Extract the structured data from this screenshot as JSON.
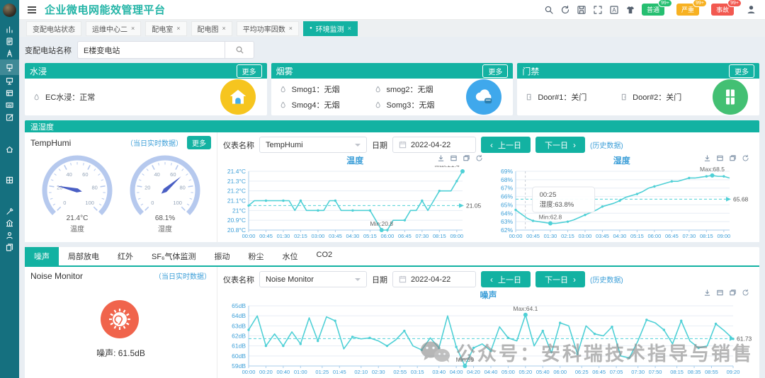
{
  "app": {
    "title": "企业微电网能效管理平台"
  },
  "header": {
    "action_icons": [
      "search",
      "refresh",
      "save",
      "fullscreen",
      "translate",
      "theme"
    ],
    "badges": [
      {
        "label": "普通",
        "count": "99+",
        "color": "#26bf71"
      },
      {
        "label": "严重",
        "count": "99+",
        "color": "#f7b122"
      },
      {
        "label": "事故",
        "count": "99+",
        "color": "#f25950"
      }
    ],
    "user_icon": "user"
  },
  "sidebar": {
    "icons": [
      "stats",
      "report",
      "substation",
      "environment",
      "inspection",
      "panel",
      "keyboard",
      "edit",
      "home",
      "grid",
      "tools",
      "enterprise",
      "user",
      "documents"
    ],
    "active_index": 3
  },
  "tabs": [
    {
      "label": "变配电站状态",
      "closable": false,
      "active": false
    },
    {
      "label": "运维中心二",
      "closable": true,
      "active": false
    },
    {
      "label": "配电室",
      "closable": true,
      "active": false
    },
    {
      "label": "配电图",
      "closable": true,
      "active": false
    },
    {
      "label": "平均功率因数",
      "closable": true,
      "active": false
    },
    {
      "label": "环境监测",
      "closable": true,
      "active": true
    }
  ],
  "search": {
    "label": "变配电站名称",
    "value": "E楼变电站"
  },
  "panels": {
    "water": {
      "title": "水浸",
      "more": "更多",
      "icon_color": "#f6c51f",
      "items": [
        {
          "name": "EC水浸",
          "value": "正常"
        }
      ]
    },
    "smoke": {
      "title": "烟雾",
      "more": "更多",
      "icon_color": "#3fa8ec",
      "items": [
        {
          "name": "Smog1",
          "value": "无烟"
        },
        {
          "name": "smog2",
          "value": "无烟"
        },
        {
          "name": "Smog4",
          "value": "无烟"
        },
        {
          "name": "Somg3",
          "value": "无烟"
        }
      ]
    },
    "door": {
      "title": "门禁",
      "more": "更多",
      "icon_color": "#43c073",
      "items": [
        {
          "name": "Door#1",
          "value": "关门"
        },
        {
          "name": "Door#2",
          "value": "关门"
        }
      ]
    }
  },
  "temphumi": {
    "section_title": "温湿度",
    "device": "TempHumi",
    "realtime_label": "（当日实时数据）",
    "more": "更多",
    "gauges": [
      {
        "value": 21.4,
        "display": "21.4°C",
        "label": "温度",
        "min": 0,
        "max": 100,
        "ticks": [
          0,
          20,
          40,
          60,
          80,
          100
        ]
      },
      {
        "value": 68.1,
        "display": "68.1%",
        "label": "湿度",
        "min": 0,
        "max": 100,
        "ticks": [
          0,
          20,
          40,
          60,
          80,
          100
        ]
      }
    ],
    "controls": {
      "meter_label": "仪表名称",
      "meter_value": "TempHumi",
      "date_label": "日期",
      "date_value": "2022-04-22",
      "prev": "上一日",
      "next": "下一日",
      "history": "(历史数据)"
    }
  },
  "noise": {
    "tabs": [
      "噪声",
      "局部放电",
      "红外",
      "SF₆气体监测",
      "振动",
      "粉尘",
      "水位",
      "CO2"
    ],
    "active_tab": 0,
    "device": "Noise Monitor",
    "realtime_label": "（当日实时数据）",
    "value_text": "噪声:  61.5dB",
    "icon_color": "#f0644c",
    "controls": {
      "meter_label": "仪表名称",
      "meter_value": "Noise Monitor",
      "date_label": "日期",
      "date_value": "2022-04-22",
      "prev": "上一日",
      "next": "下一日",
      "history": "(历史数据)"
    }
  },
  "toolbox_icons": [
    "download",
    "dataview",
    "restore",
    "refresh"
  ],
  "watermark": {
    "text": "公众号：安科瑞技术指导与销售"
  },
  "chart_data": [
    {
      "id": "temp",
      "type": "line",
      "title": "温度",
      "unit": "°C",
      "ylim": [
        20.8,
        21.4
      ],
      "ystep": 0.1,
      "step_min": 15,
      "line_color": "#4fd0d6",
      "x_ticks": [
        "00:00",
        "00:45",
        "01:30",
        "02:15",
        "03:00",
        "03:45",
        "04:30",
        "05:15",
        "06:00",
        "06:45",
        "07:30",
        "08:15",
        "09:00"
      ],
      "values": [
        21.05,
        21.1,
        21.1,
        21.1,
        21.1,
        21.1,
        21.1,
        21.1,
        21.0,
        21.1,
        21.0,
        21.0,
        21.0,
        21.0,
        21.1,
        21.1,
        21.0,
        21.0,
        21.0,
        21.0,
        21.0,
        21.0,
        20.9,
        20.8,
        20.8,
        20.9,
        20.9,
        20.9,
        21.0,
        21.0,
        21.1,
        21.0,
        21.1,
        21.2,
        21.2,
        21.2,
        21.3,
        21.4
      ],
      "avg": 21.05,
      "avg_label": "21.05",
      "max_label": "Max:21.4",
      "max_index": 37,
      "min_label": "Min:20.8",
      "min_index": 23,
      "marker_every": 3
    },
    {
      "id": "hum",
      "type": "line",
      "title": "湿度",
      "unit": "%",
      "ylim": [
        62,
        69
      ],
      "ystep": 1,
      "step_min": 15,
      "line_color": "#4fd0d6",
      "x_ticks": [
        "00:00",
        "00:45",
        "01:30",
        "02:15",
        "03:00",
        "03:45",
        "04:30",
        "05:15",
        "06:00",
        "06:45",
        "07:30",
        "08:15",
        "09:00"
      ],
      "values": [
        64.4,
        63.9,
        63.4,
        63.1,
        63.0,
        62.9,
        62.8,
        62.8,
        62.9,
        63.0,
        63.2,
        63.5,
        63.8,
        64.1,
        64.4,
        64.8,
        65.0,
        65.2,
        65.5,
        65.9,
        66.1,
        66.3,
        66.6,
        67.0,
        67.2,
        67.4,
        67.6,
        67.8,
        67.8,
        68.0,
        68.2,
        68.2,
        68.3,
        68.4,
        68.5,
        68.4,
        68.4,
        68.2
      ],
      "avg": 65.68,
      "avg_label": "65.68",
      "max_label": "Max:68.5",
      "max_index": 34,
      "min_label": "Min:62.8",
      "min_index": 6,
      "marker_every": 3,
      "tooltip": {
        "time": "00:25",
        "text": "湿度:63.8%",
        "at_min": 25
      }
    },
    {
      "id": "noise",
      "type": "line",
      "title": "噪声",
      "unit": "dB",
      "ylim": [
        59,
        65
      ],
      "ystep": 1,
      "step_min": 10,
      "line_color": "#4fd0d6",
      "x_ticks": [
        "00:00",
        "00:20",
        "00:40",
        "01:00",
        "01:25",
        "01:45",
        "02:10",
        "02:30",
        "02:55",
        "03:15",
        "03:40",
        "04:00",
        "04:20",
        "04:40",
        "05:00",
        "05:20",
        "05:40",
        "06:00",
        "06:25",
        "06:45",
        "07:05",
        "07:30",
        "07:50",
        "08:15",
        "08:35",
        "08:55",
        "09:20"
      ],
      "values": [
        62.6,
        64.0,
        61.0,
        62.2,
        61.0,
        62.4,
        61.2,
        63.8,
        61.5,
        63.9,
        63.5,
        60.7,
        61.9,
        61.7,
        61.8,
        61.5,
        61.0,
        61.6,
        62.5,
        61.0,
        60.6,
        61.8,
        60.8,
        64.0,
        60.9,
        59.0,
        60.8,
        61.2,
        60.5,
        62.9,
        61.8,
        61.5,
        64.1,
        61.0,
        62.5,
        60.3,
        63.3,
        63.0,
        60.2,
        63.0,
        62.2,
        62.0,
        62.9,
        60.0,
        59.8,
        61.5,
        63.6,
        63.3,
        62.6,
        61.2,
        63.5,
        61.5,
        60.8,
        61.0,
        63.2,
        62.5,
        61.7
      ],
      "avg": 61.73,
      "avg_label": "61.73",
      "max_label": "Max:64.1",
      "max_index": 32,
      "min_label": "Min:59",
      "min_index": 25,
      "marker_every": 2
    }
  ]
}
